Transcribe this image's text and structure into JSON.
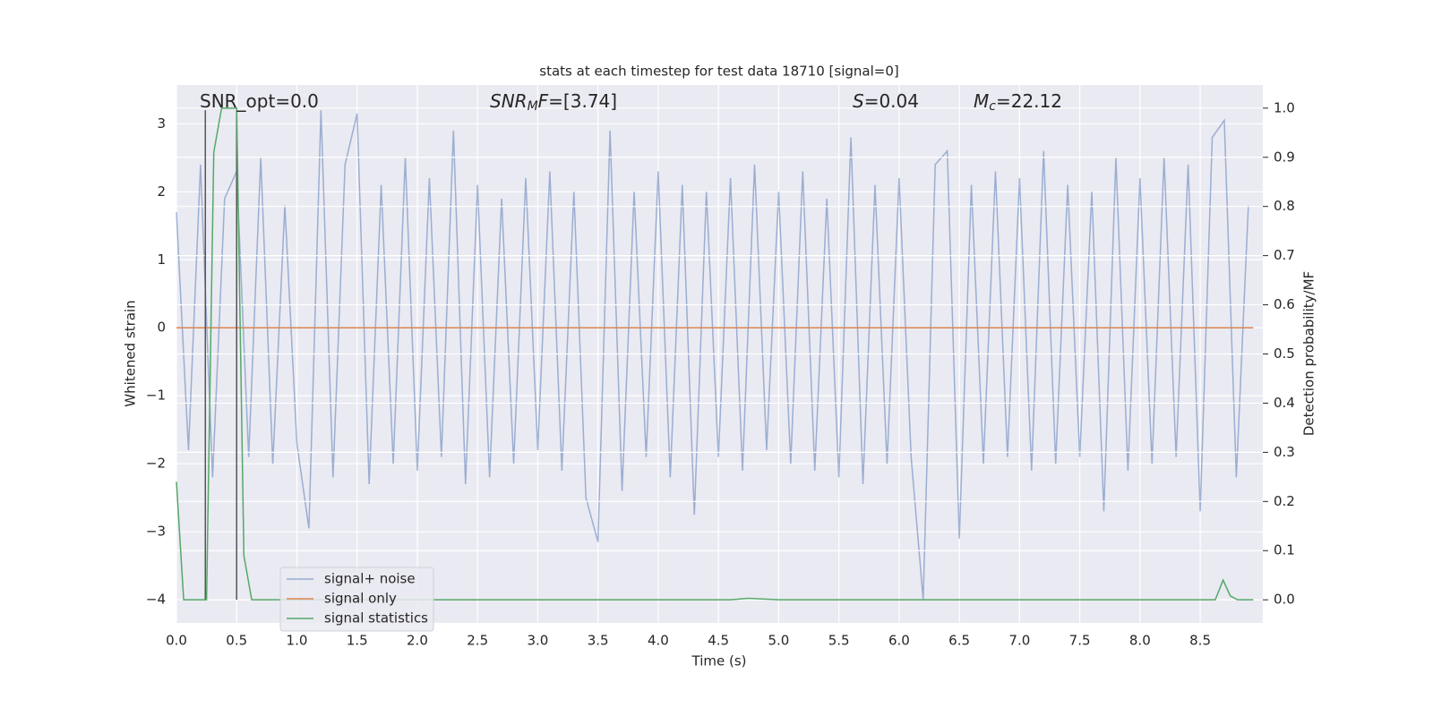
{
  "chart_data": {
    "type": "line",
    "title": "stats at each timestep for test data 18710 [signal=0]",
    "xlabel": "Time (s)",
    "ylabel": "Whitened strain",
    "y2label": "Detection probability/MF",
    "xlim": [
      0,
      9.02
    ],
    "ylim": [
      -4.34,
      3.57
    ],
    "y2lim": [
      -0.047,
      1.047
    ],
    "grid": true,
    "legend": "lower left",
    "xticks": [
      {
        "value": 0,
        "label": "0.0"
      },
      {
        "value": 0.5,
        "label": "0.5"
      },
      {
        "value": 1,
        "label": "1.0"
      },
      {
        "value": 1.5,
        "label": "1.5"
      },
      {
        "value": 2,
        "label": "2.0"
      },
      {
        "value": 2.5,
        "label": "2.5"
      },
      {
        "value": 3,
        "label": "3.0"
      },
      {
        "value": 3.5,
        "label": "3.5"
      },
      {
        "value": 4,
        "label": "4.0"
      },
      {
        "value": 4.5,
        "label": "4.5"
      },
      {
        "value": 5,
        "label": "5.0"
      },
      {
        "value": 5.5,
        "label": "5.5"
      },
      {
        "value": 6,
        "label": "6.0"
      },
      {
        "value": 6.5,
        "label": "6.5"
      },
      {
        "value": 7,
        "label": "7.0"
      },
      {
        "value": 7.5,
        "label": "7.5"
      },
      {
        "value": 8,
        "label": "8.0"
      },
      {
        "value": 8.5,
        "label": "8.5"
      }
    ],
    "yticks": [
      {
        "value": -4,
        "label": "−4"
      },
      {
        "value": -3,
        "label": "−3"
      },
      {
        "value": -2,
        "label": "−2"
      },
      {
        "value": -1,
        "label": "−1"
      },
      0,
      1,
      2,
      3
    ],
    "y2ticks": [
      {
        "value": 0,
        "label": "0.0"
      },
      {
        "value": 0.1,
        "label": "0.1"
      },
      {
        "value": 0.2,
        "label": "0.2"
      },
      {
        "value": 0.3,
        "label": "0.3"
      },
      {
        "value": 0.4,
        "label": "0.4"
      },
      {
        "value": 0.5,
        "label": "0.5"
      },
      {
        "value": 0.6,
        "label": "0.6"
      },
      {
        "value": 0.7,
        "label": "0.7"
      },
      {
        "value": 0.8,
        "label": "0.8"
      },
      {
        "value": 0.9,
        "label": "0.9"
      },
      {
        "value": 1,
        "label": "1.0"
      }
    ],
    "series": [
      {
        "name": "signal+ noise",
        "color": "#4c72b0",
        "opacity": 0.5,
        "x": [
          0,
          0.1,
          0.2,
          0.3,
          0.4,
          0.5,
          0.6,
          0.7,
          0.8,
          0.9,
          1,
          1.1,
          1.2,
          1.3,
          1.4,
          1.5,
          1.6,
          1.7,
          1.8,
          1.9,
          2,
          2.1,
          2.2,
          2.3,
          2.4,
          2.5,
          2.6,
          2.7,
          2.8,
          2.9,
          3,
          3.1,
          3.2,
          3.3,
          3.4,
          3.5,
          3.6,
          3.7,
          3.8,
          3.9,
          4,
          4.1,
          4.2,
          4.3,
          4.4,
          4.5,
          4.6,
          4.7,
          4.8,
          4.9,
          5,
          5.1,
          5.2,
          5.3,
          5.4,
          5.5,
          5.6,
          5.7,
          5.8,
          5.9,
          6,
          6.1,
          6.2,
          6.3,
          6.4,
          6.5,
          6.6,
          6.7,
          6.8,
          6.9,
          7,
          7.1,
          7.2,
          7.3,
          7.4,
          7.5,
          7.6,
          7.7,
          7.8,
          7.9,
          8,
          8.1,
          8.2,
          8.3,
          8.4,
          8.5,
          8.6,
          8.7,
          8.8,
          8.9
        ],
        "values": [
          1.7,
          -1.8,
          2.4,
          -2.2,
          1.9,
          2.3,
          -1.9,
          2.5,
          -2.0,
          1.8,
          -1.7,
          -2.95,
          3.2,
          -2.2,
          2.4,
          3.15,
          -2.3,
          2.1,
          -2.0,
          2.5,
          -2.1,
          2.2,
          -1.9,
          2.9,
          -2.3,
          2.1,
          -2.2,
          1.9,
          -2.0,
          2.2,
          -1.8,
          2.3,
          -2.1,
          2.0,
          -2.5,
          -3.15,
          2.9,
          -2.4,
          2.0,
          -1.9,
          2.3,
          -2.2,
          2.1,
          -2.75,
          2.0,
          -1.9,
          2.2,
          -2.1,
          2.4,
          -1.8,
          2.0,
          -2.0,
          2.3,
          -2.1,
          1.9,
          -2.2,
          2.8,
          -2.3,
          2.1,
          -2.0,
          2.2,
          -1.9,
          -4.0,
          2.4,
          2.6,
          -3.1,
          2.1,
          -2.0,
          2.3,
          -1.9,
          2.2,
          -2.1,
          2.6,
          -2.0,
          2.1,
          -1.9,
          2.0,
          -2.7,
          2.5,
          -2.1,
          2.2,
          -2.0,
          2.5,
          -1.9,
          2.4,
          -2.7,
          2.8,
          3.05,
          -2.2,
          1.8
        ]
      },
      {
        "name": "signal only",
        "color": "#dd8452",
        "x": [
          0,
          8.94
        ],
        "values": [
          0,
          0
        ]
      },
      {
        "name": "signal statistics",
        "color": "#55a868",
        "axis": "y2",
        "x": [
          0,
          0.06,
          0.25,
          0.31,
          0.375,
          0.5,
          0.56,
          0.625,
          4.6,
          4.75,
          5.0,
          8.625,
          8.69,
          8.75,
          8.81,
          8.94
        ],
        "values": [
          0.24,
          0,
          0,
          0.91,
          1.0,
          1.0,
          0.09,
          0,
          0,
          0.003,
          0,
          0,
          0.04,
          0.008,
          0,
          0
        ]
      }
    ],
    "vlines": {
      "x": [
        0.24,
        0.5
      ],
      "ymin": -4,
      "ymax": 3.2,
      "color": "#555555"
    },
    "annotations": [
      [
        {
          "text": "SNR_opt=0.0"
        }
      ],
      [
        {
          "text": "SNR",
          "style": "italic"
        },
        {
          "text": "M",
          "style": "italic-sub"
        },
        {
          "text": "F",
          "style": "italic"
        },
        {
          "text": "=[3.74]"
        }
      ],
      [
        {
          "text": "S",
          "style": "italic"
        },
        {
          "text": "=0.04"
        }
      ],
      [
        {
          "text": "M",
          "style": "italic"
        },
        {
          "text": "c",
          "style": "italic-sub"
        },
        {
          "text": "=22.12"
        }
      ]
    ]
  }
}
